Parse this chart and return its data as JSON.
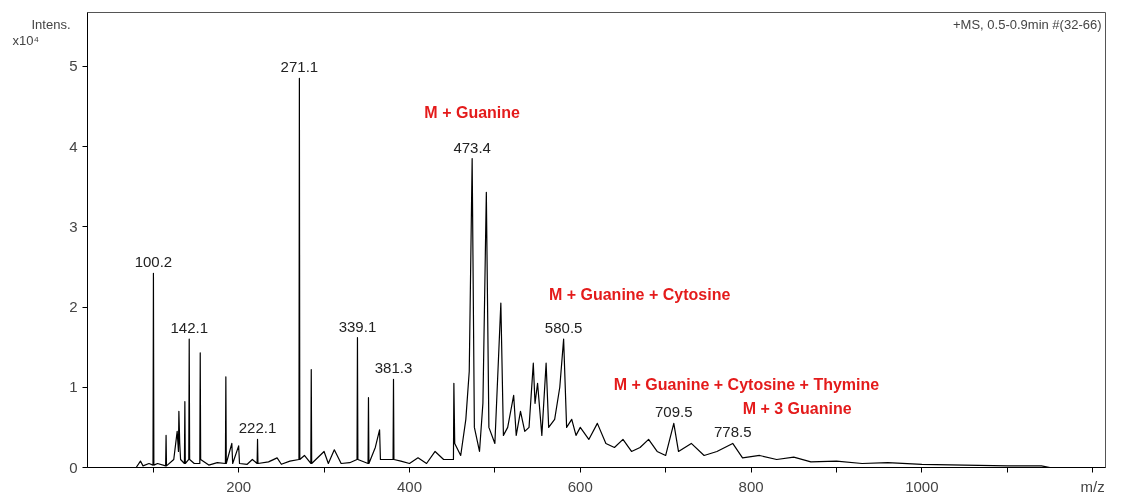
{
  "chart_data": {
    "type": "line",
    "xlabel": "m/z",
    "ylabel": "Intens. x10⁴",
    "color": "#000000",
    "grid": false,
    "marker": "none",
    "line_style": "solid",
    "xlim": [
      23,
      1215
    ],
    "ylim": [
      0,
      5.67
    ],
    "xticks": [
      {
        "value": 100,
        "label": null
      },
      200,
      {
        "value": 300,
        "label": null
      },
      400,
      {
        "value": 500,
        "label": null
      },
      600,
      {
        "value": 700,
        "label": null
      },
      800,
      {
        "value": 900,
        "label": null
      },
      1000,
      {
        "value": 1100,
        "label": null
      },
      {
        "value": 1200,
        "label": null
      }
    ],
    "yticks": [
      0,
      1,
      2,
      3,
      4,
      5
    ],
    "x": [
      80,
      85,
      88,
      95,
      99.7,
      100.2,
      100.7,
      105,
      114.5,
      115,
      115.5,
      124,
      128,
      129.5,
      130,
      131,
      132,
      136.5,
      137,
      137.5,
      141.6,
      142.1,
      142.6,
      148,
      154.5,
      155,
      155.5,
      165,
      175,
      184.5,
      185,
      185.5,
      192,
      193,
      200,
      201,
      210,
      216,
      221.6,
      222.1,
      222.6,
      235,
      245,
      250,
      260,
      270.6,
      271.1,
      271.6,
      277,
      284.5,
      285,
      285.5,
      300,
      305,
      312,
      320,
      330,
      338.6,
      339.1,
      339.6,
      351.5,
      352,
      352.5,
      360,
      365,
      366,
      380.8,
      381.3,
      381.8,
      390,
      400,
      410,
      420,
      430,
      440,
      451.5,
      452,
      453,
      460,
      466,
      470,
      473.4,
      476,
      482,
      486,
      490,
      493,
      500,
      507,
      510,
      515,
      522,
      525,
      530,
      535,
      540,
      545,
      547,
      550,
      555,
      560,
      563,
      570,
      576,
      580.5,
      584,
      590,
      595,
      600,
      610,
      620,
      630,
      640,
      650,
      660,
      670,
      680,
      690,
      700,
      709.5,
      715,
      730,
      745,
      760,
      778.5,
      790,
      810,
      830,
      850,
      870,
      900,
      930,
      960,
      1000,
      1050,
      1100,
      1140,
      1150
    ],
    "values": [
      0,
      0.08,
      0.02,
      0.05,
      0.03,
      2.42,
      0.03,
      0.05,
      0.02,
      0.4,
      0.02,
      0.1,
      0.45,
      0.2,
      0.7,
      0.3,
      0.1,
      0.05,
      0.82,
      0.05,
      0.1,
      1.6,
      0.1,
      0.05,
      0.05,
      1.43,
      0.1,
      0.03,
      0.06,
      0.05,
      1.13,
      0.05,
      0.3,
      0.05,
      0.27,
      0.05,
      0.04,
      0.1,
      0.05,
      0.35,
      0.05,
      0.07,
      0.12,
      0.04,
      0.08,
      0.1,
      4.85,
      0.1,
      0.15,
      0.05,
      1.22,
      0.05,
      0.2,
      0.05,
      0.22,
      0.05,
      0.06,
      0.1,
      1.62,
      0.1,
      0.05,
      0.87,
      0.05,
      0.25,
      0.47,
      0.1,
      0.1,
      1.1,
      0.1,
      0.08,
      0.05,
      0.12,
      0.05,
      0.2,
      0.1,
      0.1,
      1.05,
      0.3,
      0.15,
      0.6,
      1.2,
      3.85,
      0.5,
      0.2,
      0.8,
      3.43,
      0.5,
      0.3,
      2.05,
      0.4,
      0.5,
      0.9,
      0.4,
      0.7,
      0.45,
      0.5,
      1.3,
      0.8,
      1.05,
      0.4,
      1.3,
      0.5,
      0.6,
      1.0,
      1.6,
      0.5,
      0.6,
      0.4,
      0.5,
      0.35,
      0.55,
      0.3,
      0.25,
      0.35,
      0.2,
      0.25,
      0.35,
      0.2,
      0.15,
      0.55,
      0.2,
      0.3,
      0.15,
      0.2,
      0.3,
      0.12,
      0.15,
      0.1,
      0.13,
      0.07,
      0.08,
      0.05,
      0.06,
      0.04,
      0.03,
      0.02,
      0.02,
      0
    ],
    "annotations": [
      "+MS, 0.5-0.9min #(32-66)",
      {
        "text": "100.2",
        "x": 100.2,
        "y": 2.42
      },
      {
        "text": "142.1",
        "x": 142.1,
        "y": 1.6
      },
      {
        "text": "222.1",
        "x": 222.1,
        "y": 0.35
      },
      {
        "text": "271.1",
        "x": 271.1,
        "y": 4.85
      },
      {
        "text": "339.1",
        "x": 339.1,
        "y": 1.62
      },
      {
        "text": "381.3",
        "x": 381.3,
        "y": 1.1
      },
      {
        "text": "473.4",
        "x": 473.4,
        "y": 3.85
      },
      {
        "text": "580.5",
        "x": 580.5,
        "y": 1.6
      },
      {
        "text": "709.5",
        "x": 709.5,
        "y": 0.55
      },
      {
        "text": "778.5",
        "x": 778.5,
        "y": 0.3
      },
      {
        "text": "M + Guanine",
        "x": 473.4,
        "y": 3.85
      },
      {
        "text": "M + Guanine + Cytosine",
        "x": 580.5,
        "y": 1.6
      },
      {
        "text": "M + Guanine + Cytosine + Thymine",
        "x": 709.5,
        "y": 0.55
      },
      {
        "text": "M + 3 Guanine",
        "x": 778.5,
        "y": 0.3
      }
    ]
  }
}
